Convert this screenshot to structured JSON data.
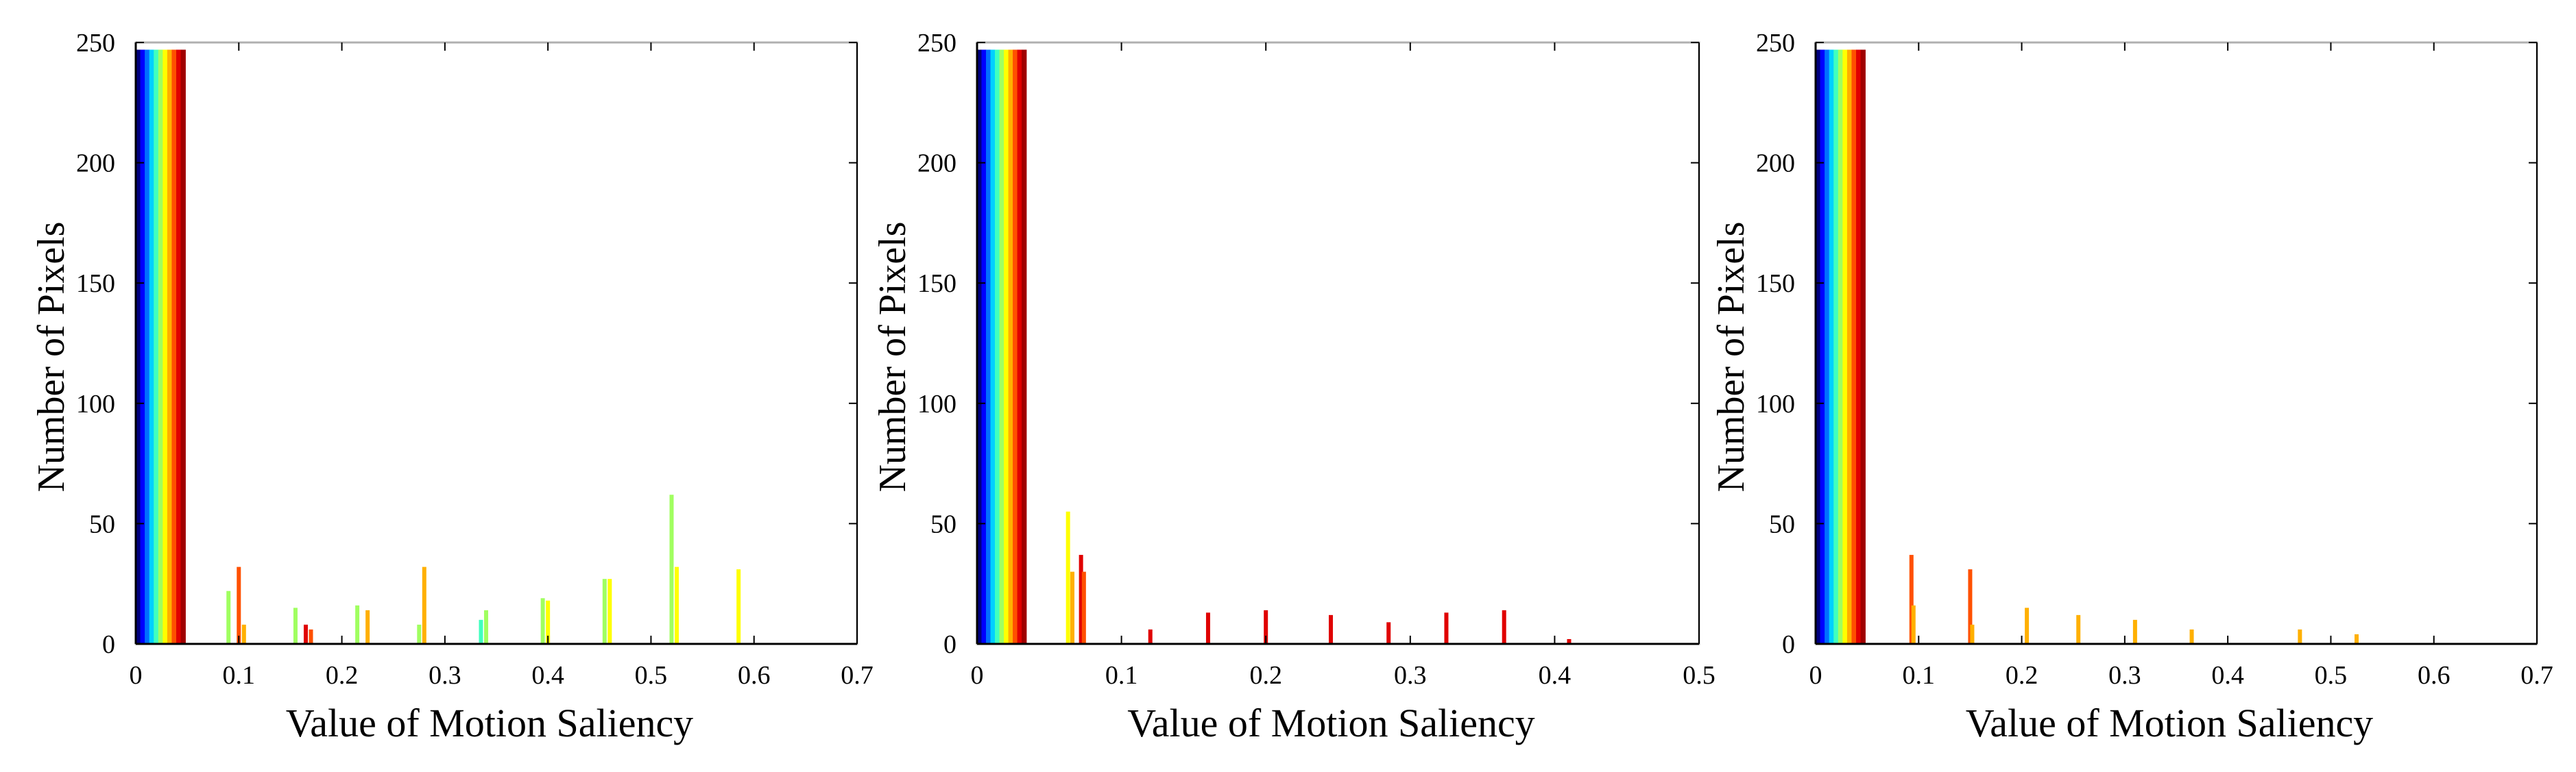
{
  "colors": {
    "colormap": [
      "#00007f",
      "#0000ff",
      "#0070ff",
      "#00d0ff",
      "#40ffbf",
      "#a0ff60",
      "#ffff00",
      "#ffb000",
      "#ff5000",
      "#e00000",
      "#a00000"
    ],
    "axis": "#000000",
    "frame": "#b0b0b0"
  },
  "chart_data": [
    {
      "type": "bar",
      "title": "",
      "xlabel": "Value of Motion Saliency",
      "ylabel": "Number of Pixels",
      "xlim": [
        0,
        0.7
      ],
      "ylim": [
        0,
        250
      ],
      "xticks": [
        0,
        0.1,
        0.2,
        0.3,
        0.4,
        0.5,
        0.6,
        0.7
      ],
      "xtick_labels": [
        "0",
        "0.1",
        "0.2",
        "0.3",
        "0.4",
        "0.5",
        "0.6",
        "0.7"
      ],
      "yticks": [
        0,
        50,
        100,
        150,
        200,
        250
      ],
      "ytick_labels": [
        "0",
        "50",
        "100",
        "150",
        "200",
        "250"
      ],
      "grid": false,
      "main_bin": {
        "x_start": 0,
        "x_end": 0.048,
        "value": 247
      },
      "bins": [
        {
          "x": 0.09,
          "value": 22,
          "color": "#a0ff60"
        },
        {
          "x": 0.1,
          "value": 32,
          "color": "#ff5000"
        },
        {
          "x": 0.105,
          "value": 8,
          "color": "#ffb000"
        },
        {
          "x": 0.155,
          "value": 15,
          "color": "#a0ff60"
        },
        {
          "x": 0.165,
          "value": 8,
          "color": "#e00000"
        },
        {
          "x": 0.17,
          "value": 6,
          "color": "#ff5000"
        },
        {
          "x": 0.215,
          "value": 16,
          "color": "#a0ff60"
        },
        {
          "x": 0.225,
          "value": 14,
          "color": "#ffb000"
        },
        {
          "x": 0.275,
          "value": 8,
          "color": "#a0ff60"
        },
        {
          "x": 0.28,
          "value": 32,
          "color": "#ffb000"
        },
        {
          "x": 0.335,
          "value": 10,
          "color": "#40ffbf"
        },
        {
          "x": 0.34,
          "value": 14,
          "color": "#a0ff60"
        },
        {
          "x": 0.395,
          "value": 19,
          "color": "#a0ff60"
        },
        {
          "x": 0.4,
          "value": 18,
          "color": "#ffff00"
        },
        {
          "x": 0.455,
          "value": 27,
          "color": "#a0ff60"
        },
        {
          "x": 0.46,
          "value": 27,
          "color": "#ffff00"
        },
        {
          "x": 0.52,
          "value": 62,
          "color": "#a0ff60"
        },
        {
          "x": 0.525,
          "value": 32,
          "color": "#ffff00"
        },
        {
          "x": 0.585,
          "value": 31,
          "color": "#ffff00"
        }
      ]
    },
    {
      "type": "bar",
      "title": "",
      "xlabel": "Value of Motion Saliency",
      "ylabel": "Number of Pixels",
      "xlim": [
        0,
        0.5
      ],
      "ylim": [
        0,
        250
      ],
      "xticks": [
        0,
        0.1,
        0.2,
        0.3,
        0.4,
        0.5
      ],
      "xtick_labels": [
        "0",
        "0.1",
        "0.2",
        "0.3",
        "0.4",
        "0.5"
      ],
      "yticks": [
        0,
        50,
        100,
        150,
        200,
        250
      ],
      "ytick_labels": [
        "0",
        "50",
        "100",
        "150",
        "200",
        "250"
      ],
      "grid": false,
      "main_bin": {
        "x_start": 0,
        "x_end": 0.034,
        "value": 247
      },
      "bins": [
        {
          "x": 0.063,
          "value": 55,
          "color": "#ffff00"
        },
        {
          "x": 0.066,
          "value": 30,
          "color": "#ffb000"
        },
        {
          "x": 0.072,
          "value": 37,
          "color": "#e00000"
        },
        {
          "x": 0.074,
          "value": 30,
          "color": "#ff5000"
        },
        {
          "x": 0.12,
          "value": 6,
          "color": "#e00000"
        },
        {
          "x": 0.16,
          "value": 13,
          "color": "#e00000"
        },
        {
          "x": 0.2,
          "value": 14,
          "color": "#e00000"
        },
        {
          "x": 0.245,
          "value": 12,
          "color": "#e00000"
        },
        {
          "x": 0.285,
          "value": 9,
          "color": "#e00000"
        },
        {
          "x": 0.325,
          "value": 13,
          "color": "#e00000"
        },
        {
          "x": 0.365,
          "value": 14,
          "color": "#e00000"
        },
        {
          "x": 0.41,
          "value": 2,
          "color": "#e00000"
        }
      ]
    },
    {
      "type": "bar",
      "title": "",
      "xlabel": "Value of Motion Saliency",
      "ylabel": "Number of Pixels",
      "xlim": [
        0,
        0.7
      ],
      "ylim": [
        0,
        250
      ],
      "xticks": [
        0,
        0.1,
        0.2,
        0.3,
        0.4,
        0.5,
        0.6,
        0.7
      ],
      "xtick_labels": [
        "0",
        "0.1",
        "0.2",
        "0.3",
        "0.4",
        "0.5",
        "0.6",
        "0.7"
      ],
      "yticks": [
        0,
        50,
        100,
        150,
        200,
        250
      ],
      "ytick_labels": [
        "0",
        "50",
        "100",
        "150",
        "200",
        "250"
      ],
      "grid": false,
      "main_bin": {
        "x_start": 0,
        "x_end": 0.048,
        "value": 247
      },
      "bins": [
        {
          "x": 0.093,
          "value": 37,
          "color": "#ff5000"
        },
        {
          "x": 0.095,
          "value": 16,
          "color": "#ffb000"
        },
        {
          "x": 0.15,
          "value": 31,
          "color": "#ff5000"
        },
        {
          "x": 0.152,
          "value": 8,
          "color": "#ffb000"
        },
        {
          "x": 0.205,
          "value": 15,
          "color": "#ffb000"
        },
        {
          "x": 0.255,
          "value": 12,
          "color": "#ffb000"
        },
        {
          "x": 0.31,
          "value": 10,
          "color": "#ffb000"
        },
        {
          "x": 0.365,
          "value": 6,
          "color": "#ffb000"
        },
        {
          "x": 0.47,
          "value": 6,
          "color": "#ffb000"
        },
        {
          "x": 0.525,
          "value": 4,
          "color": "#ffb000"
        }
      ]
    }
  ]
}
